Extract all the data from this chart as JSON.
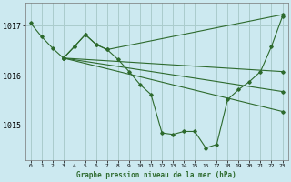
{
  "background_color": "#cce9f0",
  "grid_color": "#aacccc",
  "line_color": "#2d6a2d",
  "title": "Graphe pression niveau de la mer (hPa)",
  "ylabel_vals": [
    1015,
    1016,
    1017
  ],
  "xlim": [
    -0.5,
    23.5
  ],
  "ylim": [
    1014.3,
    1017.45
  ],
  "series": [
    {
      "x": [
        0,
        1,
        2,
        3,
        4,
        5,
        6,
        7,
        23
      ],
      "y": [
        1017.05,
        1016.78,
        1016.55,
        1016.35,
        1016.58,
        1016.82,
        1016.62,
        1016.52,
        1017.22
      ]
    },
    {
      "x": [
        3,
        4,
        5,
        6,
        7,
        8,
        9,
        10,
        11,
        12,
        13,
        14,
        15,
        16,
        17,
        18,
        19,
        20,
        21,
        22,
        23
      ],
      "y": [
        1016.35,
        1016.58,
        1016.82,
        1016.62,
        1016.52,
        1016.32,
        1016.08,
        1015.82,
        1015.62,
        1014.85,
        1014.82,
        1014.88,
        1014.88,
        1014.55,
        1014.62,
        1015.52,
        1015.72,
        1015.88,
        1016.08,
        1016.58,
        1017.18
      ]
    },
    {
      "x": [
        3,
        23
      ],
      "y": [
        1016.35,
        1016.08
      ]
    },
    {
      "x": [
        3,
        23
      ],
      "y": [
        1016.35,
        1015.68
      ]
    },
    {
      "x": [
        3,
        23
      ],
      "y": [
        1016.35,
        1015.28
      ]
    }
  ]
}
